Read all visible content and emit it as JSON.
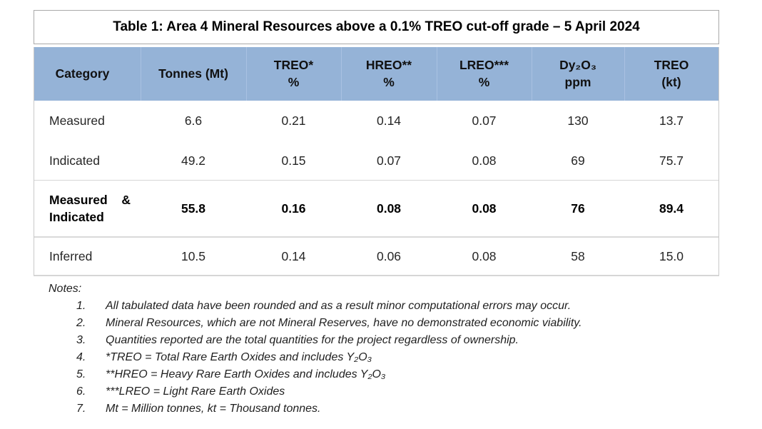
{
  "title": "Table 1: Area 4 Mineral Resources above a 0.1% TREO cut-off grade – 5 April 2024",
  "colors": {
    "header_bg": "#95b3d7",
    "title_border": "#a9a9a9",
    "table_border": "#c9c9c9",
    "row_separator": "#d6d6d6"
  },
  "table": {
    "columns": [
      {
        "line1": "Category",
        "line2": ""
      },
      {
        "line1": "Tonnes (Mt)",
        "line2": ""
      },
      {
        "line1": "TREO*",
        "line2": "%"
      },
      {
        "line1": "HREO**",
        "line2": "%"
      },
      {
        "line1": "LREO***",
        "line2": "%"
      },
      {
        "line1": "Dy₂O₃",
        "line2": "ppm"
      },
      {
        "line1": "TREO",
        "line2": "(kt)"
      }
    ],
    "rows": {
      "measured": {
        "category": "Measured",
        "tonnes": "6.6",
        "treo_pct": "0.21",
        "hreo_pct": "0.14",
        "lreo_pct": "0.07",
        "dy2o3_ppm": "130",
        "treo_kt": "13.7"
      },
      "indicated": {
        "category": "Indicated",
        "tonnes": "49.2",
        "treo_pct": "0.15",
        "hreo_pct": "0.07",
        "lreo_pct": "0.08",
        "dy2o3_ppm": "69",
        "treo_kt": "75.7"
      },
      "measured_indicated": {
        "cat_word1": "Measured",
        "cat_amp": "&",
        "cat_word2": "Indicated",
        "tonnes": "55.8",
        "treo_pct": "0.16",
        "hreo_pct": "0.08",
        "lreo_pct": "0.08",
        "dy2o3_ppm": "76",
        "treo_kt": "89.4"
      },
      "inferred": {
        "category": "Inferred",
        "tonnes": "10.5",
        "treo_pct": "0.14",
        "hreo_pct": "0.06",
        "lreo_pct": "0.08",
        "dy2o3_ppm": "58",
        "treo_kt": "15.0"
      }
    }
  },
  "notes": {
    "label": "Notes:",
    "items": [
      {
        "num": "1.",
        "text": "All tabulated data have been rounded and as a result minor computational errors may occur."
      },
      {
        "num": "2.",
        "text": "Mineral Resources, which are not Mineral Reserves, have no demonstrated economic viability."
      },
      {
        "num": "3.",
        "text": "Quantities reported are the total quantities for the project regardless of ownership."
      },
      {
        "num": "4.",
        "text": "*TREO = Total Rare Earth Oxides and includes Y₂O₃"
      },
      {
        "num": "5.",
        "text": "**HREO = Heavy Rare Earth Oxides and includes Y₂O₃"
      },
      {
        "num": "6.",
        "text": "***LREO = Light Rare Earth Oxides"
      },
      {
        "num": "7.",
        "text": "Mt = Million tonnes, kt = Thousand tonnes."
      }
    ]
  }
}
